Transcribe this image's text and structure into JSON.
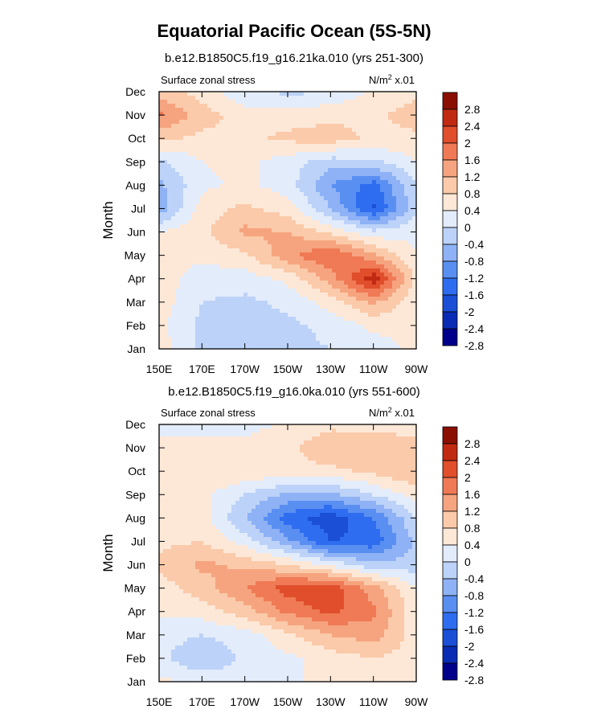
{
  "figure_title": "Equatorial Pacific Ocean (5S-5N)",
  "colors": [
    "#00008b",
    "#0a2bb4",
    "#1a4fd6",
    "#2f6df0",
    "#5a8ff2",
    "#8eb2f5",
    "#bcd2f8",
    "#e3ecfb",
    "#fde8d7",
    "#fbcaaa",
    "#f6a47f",
    "#ef7a55",
    "#e04e2b",
    "#c12a12",
    "#8b0f00"
  ],
  "chart_data": [
    {
      "type": "heatmap",
      "title": "b.e12.B1850C5.f19_g16.21ka.010 (yrs 251-300)",
      "left_label": "Surface zonal stress",
      "right_label": "N/m² x.01",
      "units_base": "N/m",
      "units_sup": "2",
      "units_suffix": " x.01",
      "xlabel": "",
      "ylabel": "Month",
      "x": [
        150,
        170,
        190,
        210,
        230,
        250,
        270
      ],
      "x_tick_labels": [
        "150E",
        "170E",
        "170W",
        "150W",
        "130W",
        "110W",
        "90W"
      ],
      "y_tick_labels": [
        "Jan",
        "Feb",
        "Mar",
        "Apr",
        "May",
        "Jun",
        "Jul",
        "Aug",
        "Sep",
        "Oct",
        "Nov",
        "Dec"
      ],
      "xlim": [
        150,
        270
      ],
      "ylim": [
        1,
        12
      ],
      "levels": [
        -2.8,
        -2.4,
        -2,
        -1.6,
        -1.2,
        -0.8,
        -0.4,
        0,
        0.4,
        0.8,
        1.2,
        1.6,
        2,
        2.4,
        2.8
      ],
      "z": [
        [
          0.2,
          -0.5,
          -0.6,
          -0.5,
          -0.4,
          -0.2,
          0.1
        ],
        [
          0.1,
          -0.5,
          -0.6,
          -0.5,
          -0.3,
          0.1,
          0.1
        ],
        [
          0.2,
          -0.4,
          -0.5,
          -0.3,
          0.2,
          0.9,
          0.1
        ],
        [
          0.2,
          -0.2,
          -0.2,
          0.1,
          1.0,
          2.3,
          0.3
        ],
        [
          0.1,
          0.1,
          0.3,
          1.1,
          1.6,
          0.9,
          0.0
        ],
        [
          0.0,
          0.3,
          0.9,
          0.8,
          0.3,
          -0.3,
          -0.1
        ],
        [
          -1.1,
          0.2,
          0.5,
          0.2,
          -0.8,
          -2.1,
          -0.5
        ],
        [
          -0.9,
          -0.1,
          0.1,
          -0.2,
          -1.2,
          -1.8,
          -0.4
        ],
        [
          -0.5,
          0.0,
          0.1,
          -0.2,
          -0.6,
          -0.5,
          0.0
        ],
        [
          0.5,
          0.3,
          0.3,
          0.5,
          0.6,
          0.3,
          0.3
        ],
        [
          1.3,
          0.6,
          0.2,
          0.2,
          0.3,
          0.3,
          0.6
        ],
        [
          0.6,
          0.2,
          -0.3,
          -0.5,
          -0.4,
          0.1,
          0.3
        ]
      ]
    },
    {
      "type": "heatmap",
      "title": "b.e12.B1850C5.f19_g16.0ka.010 (yrs 551-600)",
      "left_label": "Surface zonal stress",
      "right_label": "N/m² x.01",
      "units_base": "N/m",
      "units_sup": "2",
      "units_suffix": " x.01",
      "xlabel": "",
      "ylabel": "Month",
      "x": [
        150,
        170,
        190,
        210,
        230,
        250,
        270
      ],
      "x_tick_labels": [
        "150E",
        "170E",
        "170W",
        "150W",
        "130W",
        "110W",
        "90W"
      ],
      "y_tick_labels": [
        "Jan",
        "Feb",
        "Mar",
        "Apr",
        "May",
        "Jun",
        "Jul",
        "Aug",
        "Sep",
        "Oct",
        "Nov",
        "Dec"
      ],
      "xlim": [
        150,
        270
      ],
      "ylim": [
        1,
        12
      ],
      "levels": [
        -2.8,
        -2.4,
        -2,
        -1.6,
        -1.2,
        -0.8,
        -0.4,
        0,
        0.4,
        0.8,
        1.2,
        1.6,
        2,
        2.4,
        2.8
      ],
      "z": [
        [
          0.1,
          -0.1,
          -0.2,
          -0.1,
          0.2,
          0.3,
          0.1
        ],
        [
          -0.3,
          -0.8,
          -0.3,
          -0.1,
          0.2,
          0.4,
          0.2
        ],
        [
          -0.2,
          -0.4,
          -0.2,
          0.3,
          0.8,
          1.0,
          0.2
        ],
        [
          0.1,
          0.2,
          0.6,
          1.3,
          1.7,
          1.3,
          0.1
        ],
        [
          0.2,
          0.6,
          1.2,
          1.8,
          1.9,
          1.0,
          0.0
        ],
        [
          0.5,
          0.9,
          0.7,
          0.4,
          -0.1,
          -0.7,
          -0.6
        ],
        [
          0.3,
          0.4,
          -0.2,
          -1.1,
          -2.0,
          -1.9,
          -0.7
        ],
        [
          0.2,
          0.2,
          -0.8,
          -1.8,
          -2.3,
          -1.6,
          -0.4
        ],
        [
          0.2,
          0.1,
          -0.4,
          -0.9,
          -0.9,
          -0.4,
          0.2
        ],
        [
          0.4,
          0.4,
          0.3,
          0.3,
          0.3,
          0.5,
          0.8
        ],
        [
          0.1,
          0.2,
          0.2,
          0.3,
          0.7,
          0.6,
          0.6
        ],
        [
          -0.1,
          -0.3,
          -0.2,
          0.1,
          0.3,
          0.3,
          0.2
        ]
      ]
    }
  ]
}
